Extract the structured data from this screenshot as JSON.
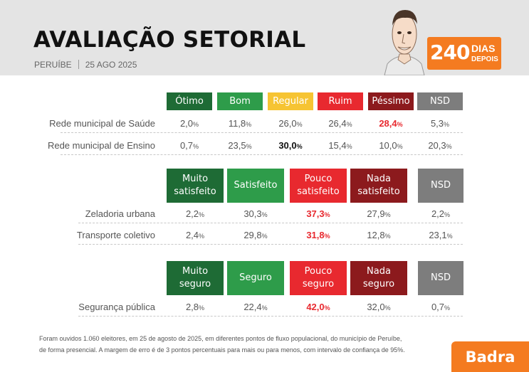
{
  "header": {
    "title": "AVALIAÇÃO SETORIAL",
    "city": "PERUÍBE",
    "date": "25 AGO 2025",
    "badge_number": "240",
    "badge_line1": "DIAS",
    "badge_line2": "DEPOIS"
  },
  "colors": {
    "dark_green": "#1e6b35",
    "green": "#2e9c4a",
    "yellow": "#f6c433",
    "red": "#e8292f",
    "dark_red": "#8c1a1d",
    "gray": "#7d7d7d",
    "highlight_red": "#e8292f",
    "orange": "#f47b20"
  },
  "chart_data": [
    {
      "type": "table",
      "columns": [
        {
          "label": "Ótimo",
          "color": "#1e6b35"
        },
        {
          "label": "Bom",
          "color": "#2e9c4a"
        },
        {
          "label": "Regular",
          "color": "#f6c433"
        },
        {
          "label": "Ruim",
          "color": "#e8292f"
        },
        {
          "label": "Péssimo",
          "color": "#8c1a1d"
        },
        {
          "label": "NSD",
          "color": "#7d7d7d"
        }
      ],
      "rows": [
        {
          "label": "Rede municipal de Saúde",
          "values": [
            {
              "n": "2,0",
              "p": "%"
            },
            {
              "n": "11,8",
              "p": "%"
            },
            {
              "n": "26,0",
              "p": "%"
            },
            {
              "n": "26,4",
              "p": "%"
            },
            {
              "n": "28,4",
              "p": "%"
            },
            {
              "n": "5,3",
              "p": "%"
            }
          ],
          "highlight": 4,
          "highlight_color": "#e8292f"
        },
        {
          "label": "Rede municipal de Ensino",
          "values": [
            {
              "n": "0,7",
              "p": "%"
            },
            {
              "n": "23,5",
              "p": "%"
            },
            {
              "n": "30,0",
              "p": "%"
            },
            {
              "n": "15,4",
              "p": "%"
            },
            {
              "n": "10,0",
              "p": "%"
            },
            {
              "n": "20,3",
              "p": "%"
            }
          ],
          "highlight": 2,
          "highlight_color": "#111111"
        }
      ]
    },
    {
      "type": "table",
      "columns": [
        {
          "label": "Muito satisfeito",
          "color": "#1e6b35"
        },
        {
          "label": "Satisfeito",
          "color": "#2e9c4a"
        },
        {
          "label": "Pouco satisfeito",
          "color": "#e8292f"
        },
        {
          "label": "Nada satisfeito",
          "color": "#8c1a1d"
        },
        {
          "label": "NSD",
          "color": "#7d7d7d"
        }
      ],
      "rows": [
        {
          "label": "Zeladoria urbana",
          "values": [
            {
              "n": "2,2",
              "p": "%"
            },
            {
              "n": "30,3",
              "p": "%"
            },
            {
              "n": "37,3",
              "p": "%"
            },
            {
              "n": "27,9",
              "p": "%"
            },
            {
              "n": "2,2",
              "p": "%"
            }
          ],
          "highlight": 2,
          "highlight_color": "#e8292f"
        },
        {
          "label": "Transporte coletivo",
          "values": [
            {
              "n": "2,4",
              "p": "%"
            },
            {
              "n": "29,8",
              "p": "%"
            },
            {
              "n": "31,8",
              "p": "%"
            },
            {
              "n": "12,8",
              "p": "%"
            },
            {
              "n": "23,1",
              "p": "%"
            }
          ],
          "highlight": 2,
          "highlight_color": "#e8292f"
        }
      ]
    },
    {
      "type": "table",
      "columns": [
        {
          "label": "Muito seguro",
          "color": "#1e6b35"
        },
        {
          "label": "Seguro",
          "color": "#2e9c4a"
        },
        {
          "label": "Pouco seguro",
          "color": "#e8292f"
        },
        {
          "label": "Nada seguro",
          "color": "#8c1a1d"
        },
        {
          "label": "NSD",
          "color": "#7d7d7d"
        }
      ],
      "rows": [
        {
          "label": "Segurança pública",
          "values": [
            {
              "n": "2,8",
              "p": "%"
            },
            {
              "n": "22,4",
              "p": "%"
            },
            {
              "n": "42,0",
              "p": "%"
            },
            {
              "n": "32,0",
              "p": "%"
            },
            {
              "n": "0,7",
              "p": "%"
            }
          ],
          "highlight": 2,
          "highlight_color": "#e8292f"
        }
      ]
    }
  ],
  "footnote": {
    "line1": "Foram ouvidos 1.060 eleitores, em 25 de agosto de 2025, em diferentes pontos de fluxo populacional, do município de Peruíbe,",
    "line2": "de forma presencial. A margem de erro é de 3 pontos percentuais para mais ou para menos, com intervalo de confiança de 95%."
  },
  "logo": "Badra"
}
